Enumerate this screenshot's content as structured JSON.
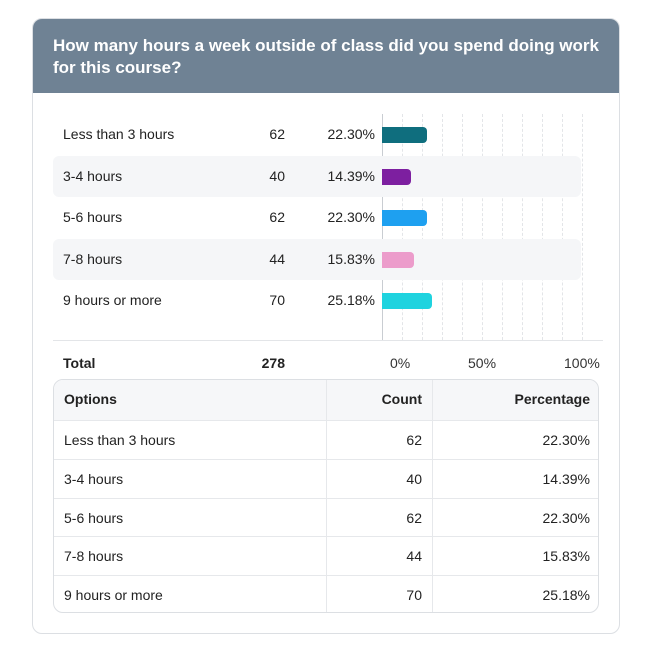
{
  "question": "How many hours a week outside of class did you spend doing work for this course?",
  "chart_data": {
    "type": "bar",
    "orientation": "horizontal",
    "categories": [
      "Less than 3 hours",
      "3-4 hours",
      "5-6 hours",
      "7-8 hours",
      "9 hours or more"
    ],
    "counts": [
      62,
      40,
      62,
      44,
      70
    ],
    "percent_labels": [
      "22.30%",
      "14.39%",
      "22.30%",
      "15.83%",
      "25.18%"
    ],
    "values": [
      22.3,
      14.39,
      22.3,
      15.83,
      25.18
    ],
    "colors": [
      "#0f6e7e",
      "#7d1fa0",
      "#1ea0f0",
      "#ec9ccb",
      "#1fd3df"
    ],
    "xlim": [
      0,
      100
    ],
    "x_tick_labels": [
      "0%",
      "50%",
      "100%"
    ],
    "x_ticks": [
      0,
      50,
      100
    ],
    "grid": true
  },
  "total": {
    "label": "Total",
    "count": "278"
  },
  "table": {
    "headers": {
      "options": "Options",
      "count": "Count",
      "percentage": "Percentage"
    },
    "rows": [
      {
        "option": "Less than 3 hours",
        "count": "62",
        "percentage": "22.30%"
      },
      {
        "option": "3-4 hours",
        "count": "40",
        "percentage": "14.39%"
      },
      {
        "option": "5-6 hours",
        "count": "62",
        "percentage": "22.30%"
      },
      {
        "option": "7-8 hours",
        "count": "44",
        "percentage": "15.83%"
      },
      {
        "option": "9 hours or more",
        "count": "70",
        "percentage": "25.18%"
      }
    ]
  }
}
